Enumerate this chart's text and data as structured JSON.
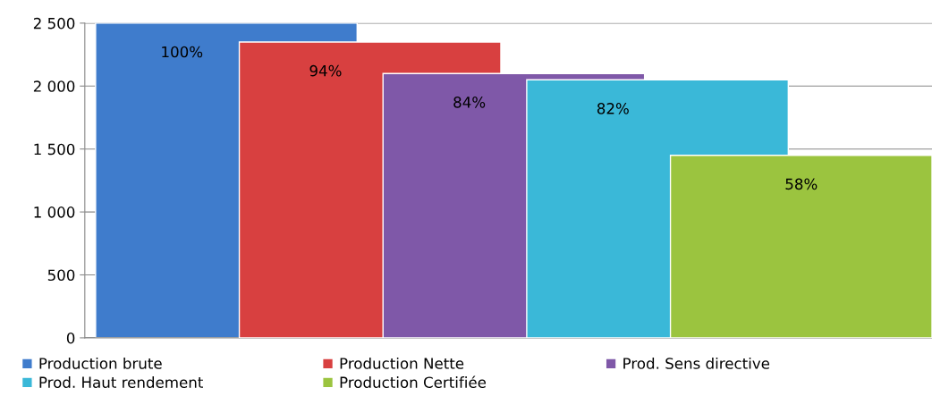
{
  "chart_data": {
    "type": "bar",
    "categories": [
      null,
      null,
      null,
      null,
      null
    ],
    "series": [
      {
        "name": "Production brute",
        "color": "#3f7ccc",
        "values": [
          2500,
          null,
          null,
          null,
          null
        ]
      },
      {
        "name": "Production Nette",
        "color": "#d84040",
        "values": [
          null,
          2350,
          null,
          null,
          null
        ]
      },
      {
        "name": "Prod. Sens directive",
        "color": "#7f58a8",
        "values": [
          null,
          null,
          2100,
          null,
          null
        ]
      },
      {
        "name": "Prod. Haut rendement",
        "color": "#3ab8d8",
        "values": [
          null,
          null,
          null,
          2050,
          null
        ]
      },
      {
        "name": "Production Certifiée",
        "color": "#9bc43f",
        "values": [
          null,
          null,
          null,
          null,
          1450
        ]
      }
    ],
    "annotations": [
      "100%",
      "94%",
      "84%",
      "82%",
      "58%"
    ],
    "ylim": [
      0,
      2500
    ],
    "yticks": [
      0,
      500,
      {
        "value": 1000,
        "label": "1 000"
      },
      {
        "value": 1500,
        "label": "1 500"
      },
      {
        "value": 2000,
        "label": "2 000"
      },
      {
        "value": 2500,
        "label": "2 500"
      }
    ],
    "grid": "y",
    "legend": "bottom"
  }
}
